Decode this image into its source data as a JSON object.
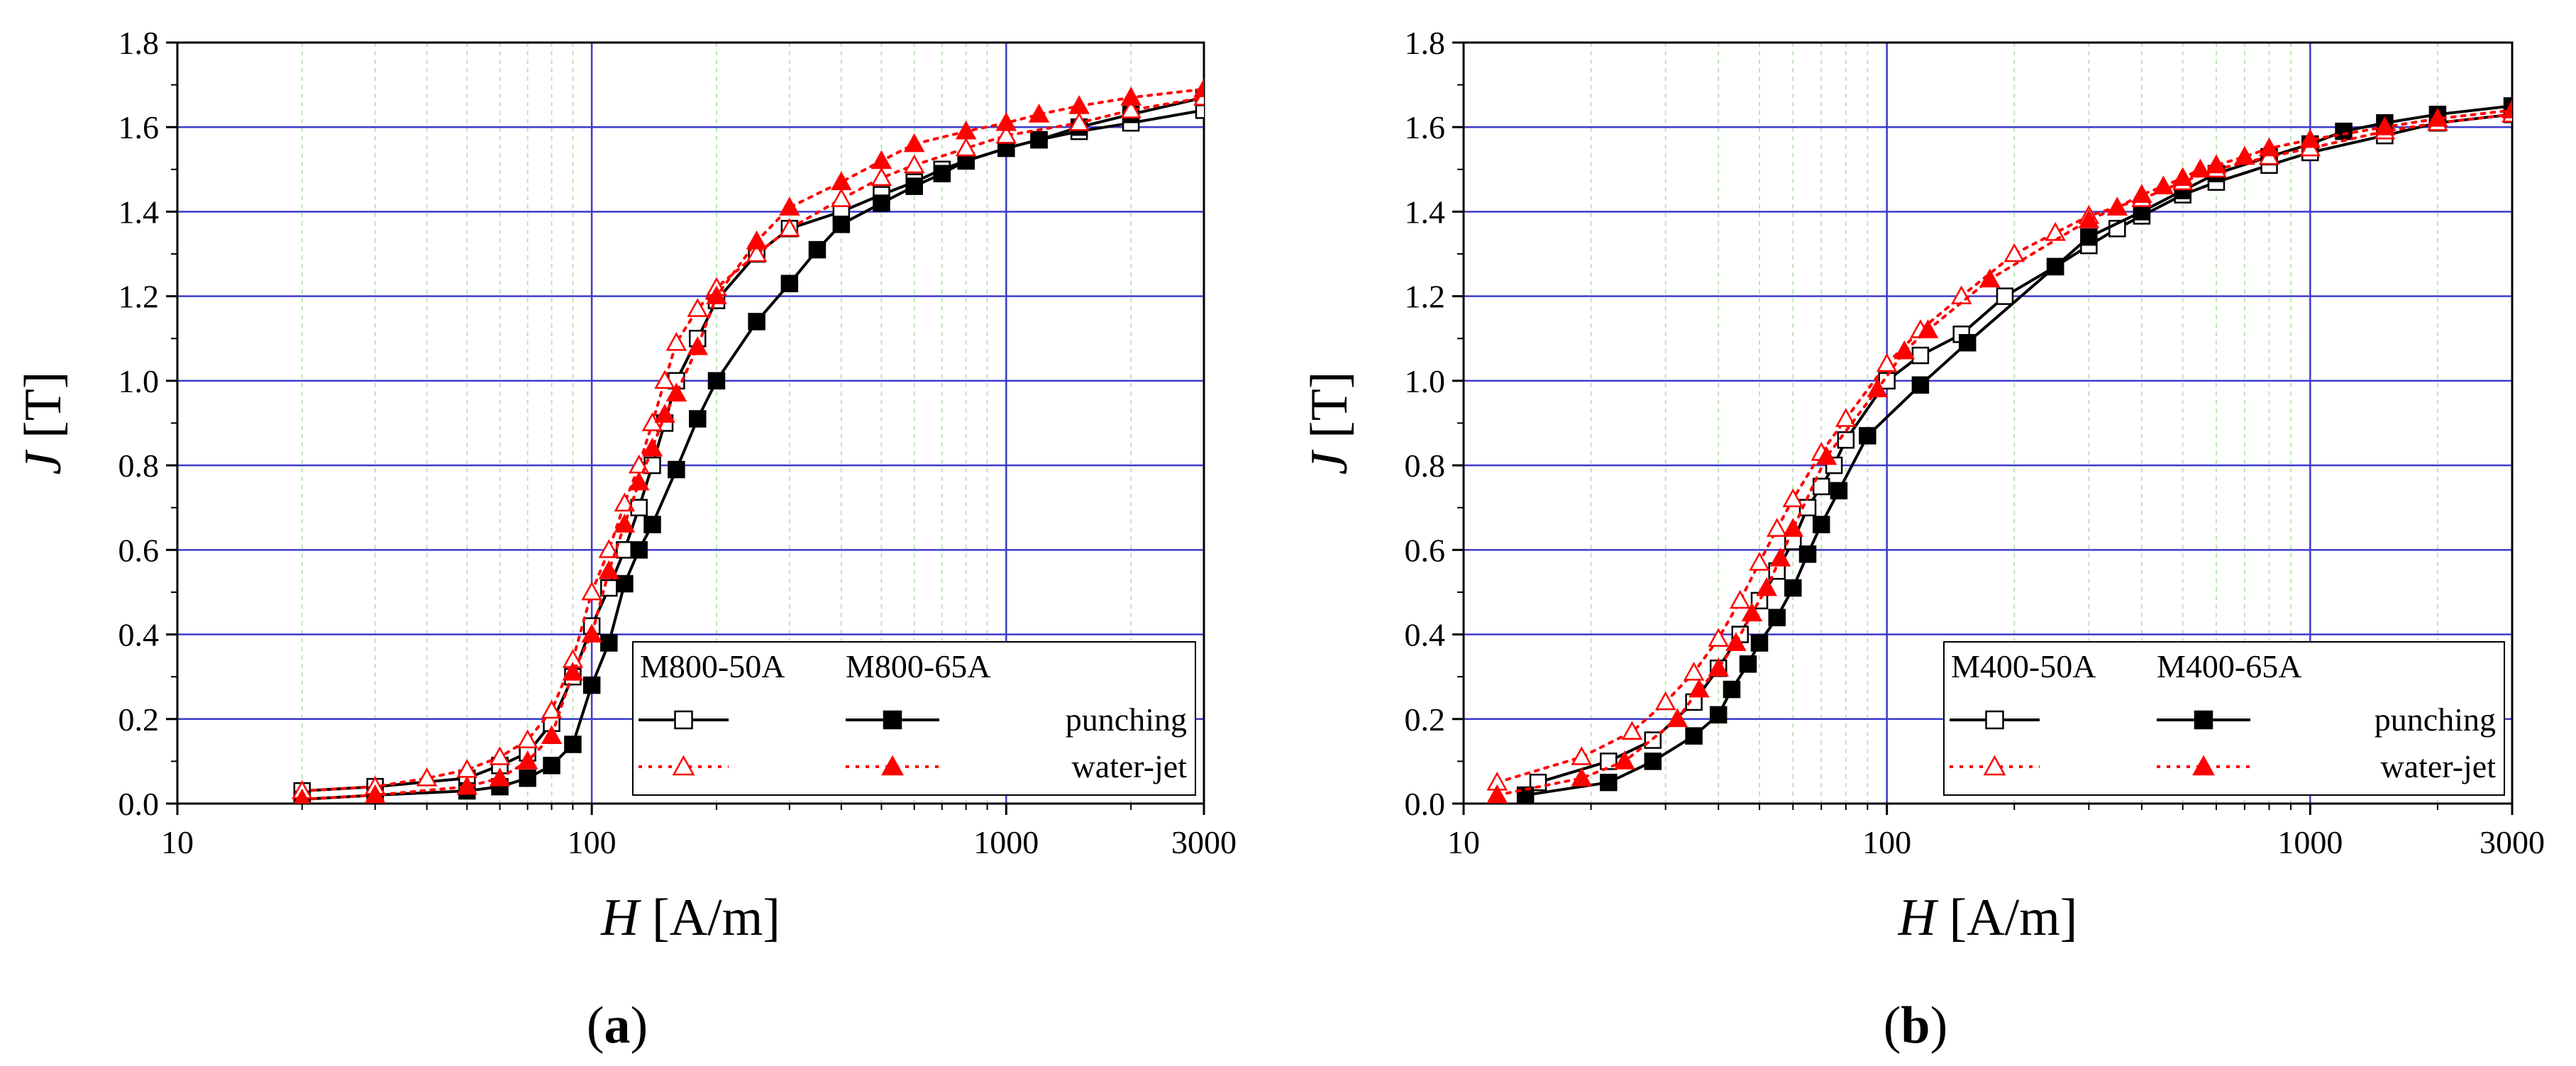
{
  "chart_data": [
    {
      "id": "a",
      "type": "line",
      "panel_label_prefix": "(",
      "panel_label_letter": "a",
      "panel_label_suffix": ")",
      "xlabel_var": "H",
      "xlabel_unit": " [A/m]",
      "ylabel_var": "J",
      "ylabel_unit": " [T]",
      "xscale": "log",
      "xlim": [
        10,
        3000
      ],
      "ylim": [
        0.0,
        1.8
      ],
      "x_ticks": [
        10,
        100,
        1000,
        3000
      ],
      "x_tick_labels": [
        "10",
        "100",
        "1000",
        "3000"
      ],
      "y_ticks": [
        0.0,
        0.2,
        0.4,
        0.6,
        0.8,
        1.0,
        1.2,
        1.4,
        1.6,
        1.8
      ],
      "y_tick_labels": [
        "0.0",
        "0.2",
        "0.4",
        "0.6",
        "0.8",
        "1.0",
        "1.2",
        "1.4",
        "1.6",
        "1.8"
      ],
      "grid": true,
      "legend": {
        "placement": "bottom-right",
        "header_1": "M800-50A",
        "header_2": "M800-65A",
        "row_1": "punching",
        "row_2": "water-jet"
      },
      "series": [
        {
          "name": "M800-50A punching",
          "color": "#000000",
          "dash": "solid",
          "marker": "square-open",
          "x": [
            20,
            30,
            50,
            60,
            70,
            80,
            90,
            100,
            110,
            120,
            130,
            140,
            150,
            160,
            180,
            200,
            250,
            300,
            400,
            500,
            600,
            700,
            800,
            1000,
            1200,
            1500,
            2000,
            3000
          ],
          "y": [
            0.03,
            0.04,
            0.06,
            0.09,
            0.12,
            0.19,
            0.3,
            0.42,
            0.51,
            0.6,
            0.7,
            0.8,
            0.9,
            1.0,
            1.1,
            1.19,
            1.3,
            1.36,
            1.4,
            1.44,
            1.47,
            1.5,
            1.52,
            1.55,
            1.57,
            1.59,
            1.61,
            1.64
          ]
        },
        {
          "name": "M800-65A punching",
          "color": "#000000",
          "dash": "solid",
          "marker": "square-filled",
          "x": [
            20,
            30,
            50,
            60,
            70,
            80,
            90,
            100,
            110,
            120,
            130,
            140,
            160,
            180,
            200,
            250,
            300,
            350,
            400,
            500,
            600,
            700,
            800,
            1000,
            1200,
            1500,
            2000,
            3000
          ],
          "y": [
            0.01,
            0.02,
            0.03,
            0.04,
            0.06,
            0.09,
            0.14,
            0.28,
            0.38,
            0.52,
            0.6,
            0.66,
            0.79,
            0.91,
            1.0,
            1.14,
            1.23,
            1.31,
            1.37,
            1.42,
            1.46,
            1.49,
            1.52,
            1.55,
            1.57,
            1.6,
            1.63,
            1.67
          ]
        },
        {
          "name": "M800-50A water-jet",
          "color": "#ff0000",
          "dash": "dotted",
          "marker": "triangle-open",
          "x": [
            20,
            30,
            40,
            50,
            60,
            70,
            80,
            90,
            100,
            110,
            120,
            130,
            140,
            150,
            160,
            180,
            200,
            250,
            300,
            400,
            500,
            600,
            800,
            1000,
            1500,
            2000,
            3000
          ],
          "y": [
            0.03,
            0.04,
            0.06,
            0.08,
            0.11,
            0.15,
            0.22,
            0.34,
            0.5,
            0.6,
            0.71,
            0.8,
            0.9,
            1.0,
            1.09,
            1.17,
            1.22,
            1.3,
            1.36,
            1.43,
            1.48,
            1.51,
            1.55,
            1.58,
            1.61,
            1.64,
            1.67
          ]
        },
        {
          "name": "M800-65A water-jet",
          "color": "#ff0000",
          "dash": "dotted",
          "marker": "triangle-filled",
          "x": [
            20,
            30,
            50,
            60,
            70,
            80,
            90,
            100,
            110,
            120,
            130,
            140,
            150,
            160,
            180,
            200,
            250,
            300,
            400,
            500,
            600,
            800,
            1000,
            1200,
            1500,
            2000,
            3000
          ],
          "y": [
            0.01,
            0.02,
            0.04,
            0.06,
            0.1,
            0.16,
            0.31,
            0.4,
            0.55,
            0.66,
            0.76,
            0.84,
            0.92,
            0.97,
            1.08,
            1.2,
            1.33,
            1.41,
            1.47,
            1.52,
            1.56,
            1.59,
            1.61,
            1.63,
            1.65,
            1.67,
            1.69
          ]
        }
      ]
    },
    {
      "id": "b",
      "type": "line",
      "panel_label_prefix": "(",
      "panel_label_letter": "b",
      "panel_label_suffix": ")",
      "xlabel_var": "H",
      "xlabel_unit": " [A/m]",
      "ylabel_var": "J",
      "ylabel_unit": " [T]",
      "xscale": "log",
      "xlim": [
        10,
        3000
      ],
      "ylim": [
        0.0,
        1.8
      ],
      "x_ticks": [
        10,
        100,
        1000,
        3000
      ],
      "x_tick_labels": [
        "10",
        "100",
        "1000",
        "3000"
      ],
      "y_ticks": [
        0.0,
        0.2,
        0.4,
        0.6,
        0.8,
        1.0,
        1.2,
        1.4,
        1.6,
        1.8
      ],
      "y_tick_labels": [
        "0.0",
        "0.2",
        "0.4",
        "0.6",
        "0.8",
        "1.0",
        "1.2",
        "1.4",
        "1.6",
        "1.8"
      ],
      "grid": true,
      "legend": {
        "placement": "bottom-right",
        "header_1": "M400-50A",
        "header_2": "M400-65A",
        "row_1": "punching",
        "row_2": "water-jet"
      },
      "series": [
        {
          "name": "M400-50A punching",
          "color": "#000000",
          "dash": "solid",
          "marker": "square-open",
          "x": [
            15,
            22,
            28,
            35,
            40,
            45,
            50,
            55,
            60,
            65,
            70,
            75,
            80,
            100,
            120,
            150,
            190,
            250,
            300,
            350,
            400,
            500,
            600,
            800,
            1000,
            1500,
            2000,
            3000
          ],
          "y": [
            0.05,
            0.1,
            0.15,
            0.24,
            0.32,
            0.4,
            0.48,
            0.55,
            0.62,
            0.7,
            0.75,
            0.8,
            0.86,
            1.0,
            1.06,
            1.11,
            1.2,
            1.27,
            1.32,
            1.36,
            1.39,
            1.44,
            1.47,
            1.51,
            1.54,
            1.58,
            1.61,
            1.63
          ]
        },
        {
          "name": "M400-65A punching",
          "color": "#000000",
          "dash": "solid",
          "marker": "square-filled",
          "x": [
            14,
            22,
            28,
            35,
            40,
            43,
            47,
            50,
            55,
            60,
            65,
            70,
            77,
            90,
            120,
            155,
            250,
            300,
            400,
            500,
            600,
            800,
            1000,
            1200,
            1500,
            2000,
            3000
          ],
          "y": [
            0.02,
            0.05,
            0.1,
            0.16,
            0.21,
            0.27,
            0.33,
            0.38,
            0.44,
            0.51,
            0.59,
            0.66,
            0.74,
            0.87,
            0.99,
            1.09,
            1.27,
            1.34,
            1.4,
            1.45,
            1.49,
            1.53,
            1.56,
            1.59,
            1.61,
            1.63,
            1.65
          ]
        },
        {
          "name": "M400-50A water-jet",
          "color": "#ff0000",
          "dash": "dotted",
          "marker": "triangle-open",
          "x": [
            12,
            19,
            25,
            30,
            35,
            40,
            45,
            50,
            55,
            60,
            70,
            80,
            100,
            120,
            150,
            200,
            250,
            300,
            400,
            500,
            600,
            800,
            1000,
            1500,
            2000,
            3000
          ],
          "y": [
            0.05,
            0.11,
            0.17,
            0.24,
            0.31,
            0.39,
            0.48,
            0.57,
            0.65,
            0.72,
            0.83,
            0.91,
            1.04,
            1.12,
            1.2,
            1.3,
            1.35,
            1.39,
            1.43,
            1.47,
            1.5,
            1.53,
            1.55,
            1.59,
            1.61,
            1.63
          ]
        },
        {
          "name": "M400-65A water-jet",
          "color": "#ff0000",
          "dash": "dotted",
          "marker": "triangle-filled",
          "x": [
            12,
            19,
            24,
            32,
            36,
            40,
            44,
            48,
            52,
            56,
            60,
            72,
            95,
            110,
            125,
            175,
            300,
            350,
            400,
            450,
            500,
            550,
            600,
            700,
            800,
            1000,
            1500,
            2000,
            3000
          ],
          "y": [
            0.02,
            0.06,
            0.1,
            0.2,
            0.27,
            0.32,
            0.38,
            0.45,
            0.51,
            0.58,
            0.65,
            0.82,
            0.98,
            1.07,
            1.12,
            1.24,
            1.38,
            1.41,
            1.44,
            1.46,
            1.48,
            1.5,
            1.51,
            1.53,
            1.55,
            1.57,
            1.6,
            1.62,
            1.64
          ]
        }
      ]
    }
  ]
}
